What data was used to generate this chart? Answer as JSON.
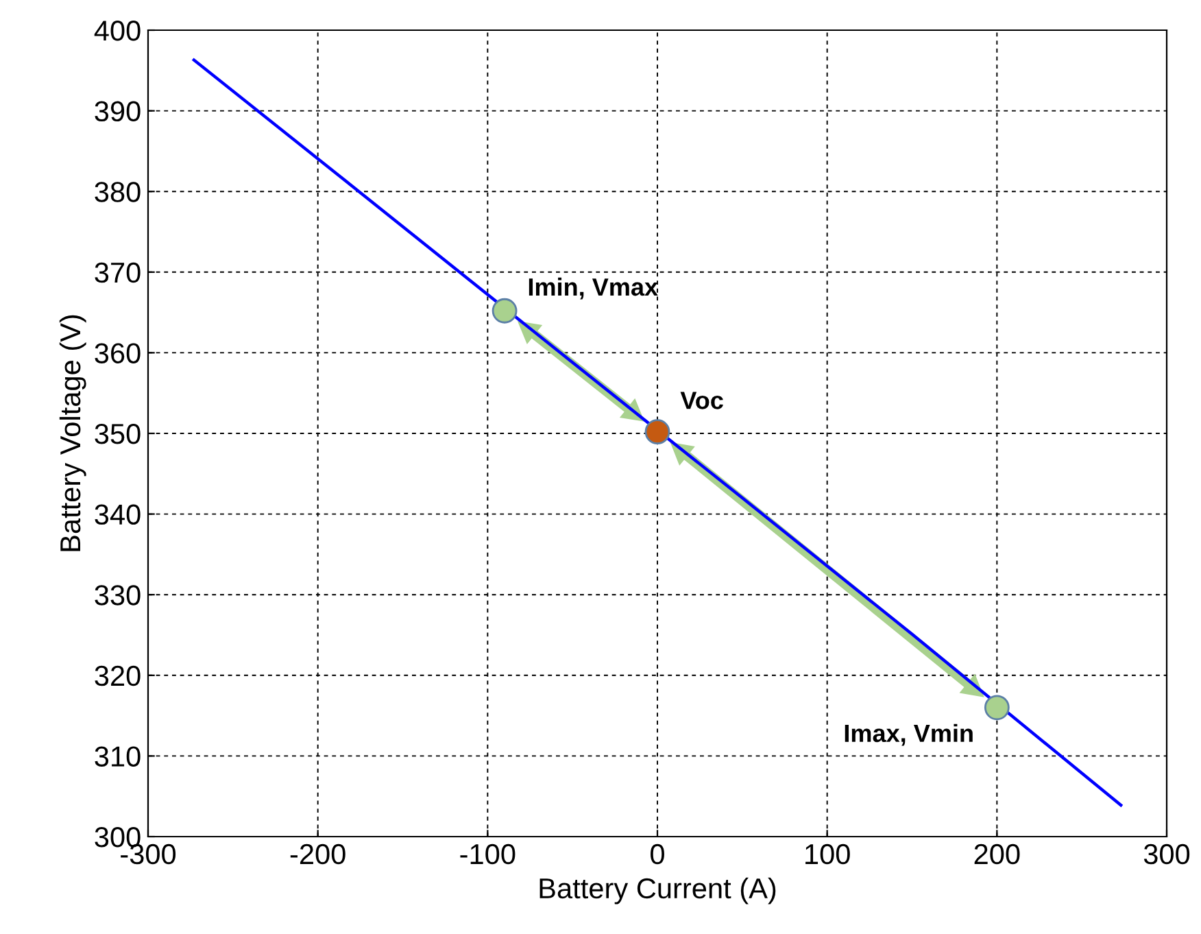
{
  "chart_data": {
    "type": "line",
    "xlabel": "Battery Current (A)",
    "ylabel": "Battery Voltage (V)",
    "xlim": [
      -300,
      300
    ],
    "xticks": [
      -300,
      -200,
      -100,
      0,
      100,
      200,
      300
    ],
    "ylim": [
      300,
      400
    ],
    "yticks": [
      300,
      310,
      320,
      330,
      340,
      350,
      360,
      370,
      380,
      390,
      400
    ],
    "grid": true,
    "legend": false,
    "series": [
      {
        "color": "#0000ff",
        "x": [
          -273,
          -180,
          -50,
          50,
          150,
          273
        ],
        "values": [
          396.3,
          380.7,
          358.8,
          342,
          325.1,
          303.9
        ]
      },
      {
        "type": "scatter",
        "marker": "circle",
        "colors": [
          "#a9d18e",
          "#c55a11",
          "#a9d18e"
        ],
        "x": [
          -90,
          0,
          200
        ],
        "values": [
          365.2,
          350.2,
          316
        ]
      }
    ],
    "annotations": [
      {
        "text": "Imin, Vmax",
        "x": -90,
        "y": 365.2
      },
      {
        "text": "Voc",
        "x": 0,
        "y": 350.2
      },
      {
        "text": "Imax, Vmin",
        "x": 200,
        "y": 316
      }
    ]
  }
}
